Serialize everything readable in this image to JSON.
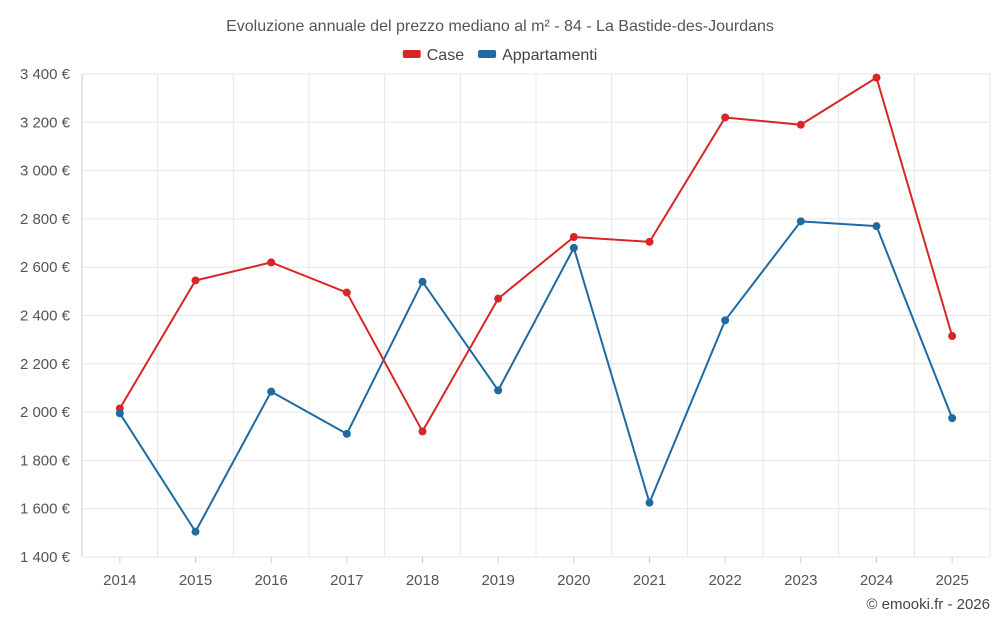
{
  "chart_data": {
    "type": "line",
    "title": "Evoluzione annuale del prezzo mediano al m² - 84 - La Bastide-des-Jourdans",
    "categories": [
      "2014",
      "2015",
      "2016",
      "2017",
      "2018",
      "2019",
      "2020",
      "2021",
      "2022",
      "2023",
      "2024",
      "2025"
    ],
    "series": [
      {
        "name": "Case",
        "color": "#d62728",
        "values": [
          2015,
          2545,
          2620,
          2495,
          1920,
          2470,
          2725,
          2705,
          3220,
          3190,
          3385,
          2315
        ]
      },
      {
        "name": "Appartamenti",
        "color": "#1f6aa0",
        "values": [
          1995,
          1505,
          2085,
          1910,
          2540,
          2090,
          2680,
          1625,
          2380,
          2790,
          2770,
          1975
        ]
      }
    ],
    "ylim": [
      1400,
      3400
    ],
    "yticks": [
      "1 400 €",
      "1 600 €",
      "1 800 €",
      "2 000 €",
      "2 200 €",
      "2 400 €",
      "2 600 €",
      "2 800 €",
      "3 000 €",
      "3 200 €",
      "3 400 €"
    ],
    "ytick_values": [
      1400,
      1600,
      1800,
      2000,
      2200,
      2400,
      2600,
      2800,
      3000,
      3200,
      3400
    ],
    "grid": true,
    "legend_position": "top-center",
    "credit": "© emooki.fr - 2026"
  }
}
